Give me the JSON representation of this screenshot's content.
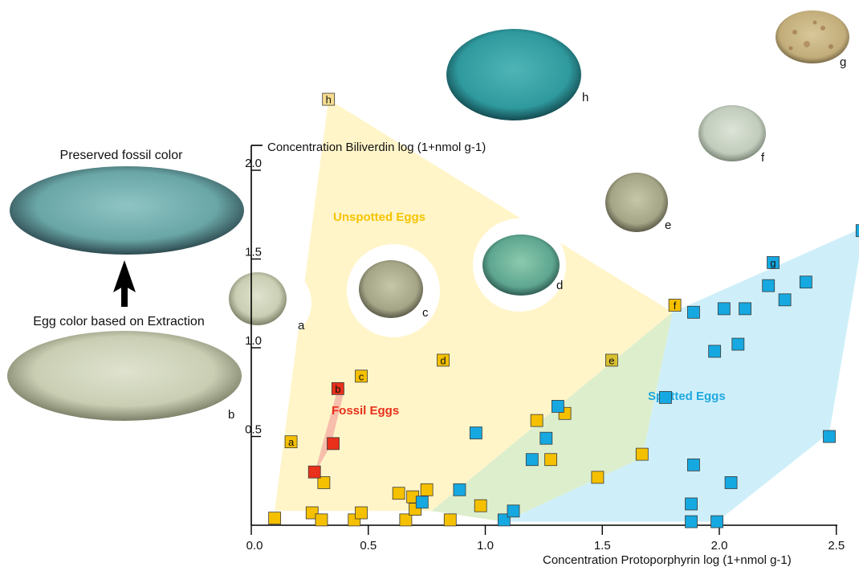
{
  "captions": {
    "preserved": "Preserved fossil color",
    "extraction": "Egg color based on Extraction",
    "big_egg_b_label": "b"
  },
  "chart_data": {
    "type": "scatter",
    "title": "",
    "xlabel": "Concentration Protoporphyrin  log (1+nmol g-1)",
    "ylabel": "Concentration Biliverdin  log (1+nmol g-1)",
    "xlim": [
      0,
      2.75
    ],
    "ylim": [
      0,
      2.2
    ],
    "xticks": [
      "0.0",
      "0.5",
      "1.0",
      "1.5",
      "2.0",
      "2.5"
    ],
    "yticks": [
      "0.5",
      "1.0",
      "1.5",
      "2.0"
    ],
    "xtick_values": [
      0,
      0.5,
      1.0,
      1.5,
      2.0,
      2.5
    ],
    "ytick_values": [
      0.5,
      1.0,
      1.5,
      2.0
    ],
    "grid": false,
    "regions": [
      {
        "name": "Unspotted Eggs",
        "color": "#fff3bf",
        "polygon": [
          [
            0.33,
            2.4
          ],
          [
            0.1,
            0.08
          ],
          [
            0.77,
            0.08
          ],
          [
            1.8,
            1.2
          ]
        ]
      },
      {
        "name": "Spotted Eggs",
        "color": "#c6ecf8",
        "polygon": [
          [
            2.62,
            1.68
          ],
          [
            1.8,
            1.2
          ],
          [
            1.67,
            0.38
          ],
          [
            1.08,
            0.02
          ],
          [
            1.99,
            0.02
          ],
          [
            2.47,
            0.52
          ]
        ]
      },
      {
        "name": "Fossil Eggs",
        "color": "#f6b8a8",
        "polygon": [
          [
            0.27,
            0.29
          ],
          [
            0.37,
            0.77
          ],
          [
            0.4,
            0.77
          ],
          [
            0.34,
            0.45
          ]
        ]
      }
    ],
    "region_labels": [
      {
        "text": "Unspotted Eggs",
        "color": "#f5c400"
      },
      {
        "text": "Spotted Eggs",
        "color": "#1fa8e0"
      },
      {
        "text": "Fossil Eggs",
        "color": "#e8301a"
      }
    ],
    "series": [
      {
        "name": "Unspotted Eggs",
        "color": "#f5c000",
        "points": [
          [
            0.1,
            0.04
          ],
          [
            0.26,
            0.07
          ],
          [
            0.3,
            0.03
          ],
          [
            0.31,
            0.24
          ],
          [
            0.44,
            0.03
          ],
          [
            0.47,
            0.07
          ],
          [
            0.63,
            0.18
          ],
          [
            0.66,
            0.03
          ],
          [
            0.69,
            0.16
          ],
          [
            0.7,
            0.09
          ],
          [
            0.75,
            0.2
          ],
          [
            0.85,
            0.03
          ],
          [
            0.98,
            0.11
          ],
          [
            1.22,
            0.59
          ],
          [
            1.28,
            0.37
          ],
          [
            1.34,
            0.63
          ],
          [
            1.48,
            0.27
          ],
          [
            1.67,
            0.4
          ]
        ]
      },
      {
        "name": "Spotted Eggs",
        "color": "#16a8e0",
        "points": [
          [
            0.73,
            0.13
          ],
          [
            0.89,
            0.2
          ],
          [
            0.96,
            0.52
          ],
          [
            1.08,
            0.03
          ],
          [
            1.12,
            0.08
          ],
          [
            1.2,
            0.37
          ],
          [
            1.26,
            0.49
          ],
          [
            1.31,
            0.67
          ],
          [
            1.77,
            0.72
          ],
          [
            1.88,
            0.12
          ],
          [
            1.88,
            0.02
          ],
          [
            1.89,
            0.34
          ],
          [
            1.89,
            1.2
          ],
          [
            1.98,
            0.98
          ],
          [
            1.99,
            0.02
          ],
          [
            2.02,
            1.22
          ],
          [
            2.05,
            0.24
          ],
          [
            2.08,
            1.02
          ],
          [
            2.11,
            1.22
          ],
          [
            2.21,
            1.35
          ],
          [
            2.28,
            1.27
          ],
          [
            2.37,
            1.37
          ],
          [
            2.47,
            0.5
          ],
          [
            2.61,
            1.66
          ]
        ]
      },
      {
        "name": "Fossil Eggs",
        "color": "#e8301a",
        "points": [
          [
            0.27,
            0.3
          ],
          [
            0.35,
            0.46
          ]
        ]
      }
    ],
    "labeled_points": [
      {
        "label": "h",
        "x": 0.33,
        "y": 2.4,
        "color": "#f6dc90"
      },
      {
        "label": "a",
        "x": 0.17,
        "y": 0.47,
        "color": "#f5c000"
      },
      {
        "label": "c",
        "x": 0.47,
        "y": 0.84,
        "color": "#f5c000"
      },
      {
        "label": "b",
        "x": 0.37,
        "y": 0.77,
        "color": "#e8301a"
      },
      {
        "label": "d",
        "x": 0.82,
        "y": 0.93,
        "color": "#f5c000"
      },
      {
        "label": "e",
        "x": 1.54,
        "y": 0.93,
        "color": "#d8c030"
      },
      {
        "label": "f",
        "x": 1.81,
        "y": 1.24,
        "color": "#f5c000"
      },
      {
        "label": "g",
        "x": 2.23,
        "y": 1.48,
        "color": "#16a8e0"
      }
    ],
    "egg_labels": [
      "a",
      "b",
      "c",
      "d",
      "e",
      "f",
      "g",
      "h"
    ]
  }
}
